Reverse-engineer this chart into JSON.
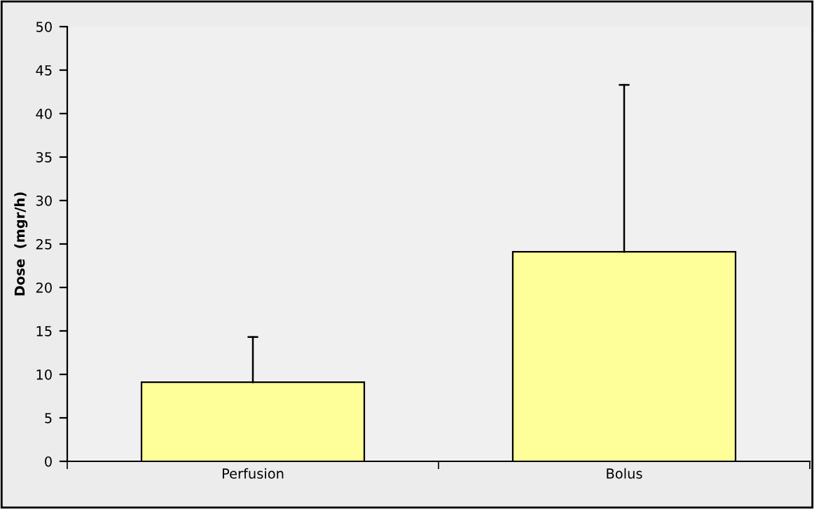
{
  "chart_data": {
    "type": "bar",
    "ylabel": "Dose  (mgr/h)",
    "categories": [
      "Perfusion",
      "Bolus"
    ],
    "values": [
      9.1,
      24.1
    ],
    "errors": [
      [
        9.1,
        14.3
      ],
      [
        24.1,
        43.3
      ]
    ],
    "color": "#ffff99",
    "ylim": [
      0,
      50
    ],
    "yticks": [
      0,
      5,
      10,
      15,
      20,
      25,
      30,
      35,
      40,
      45,
      50
    ],
    "grid": false,
    "legend": false
  }
}
